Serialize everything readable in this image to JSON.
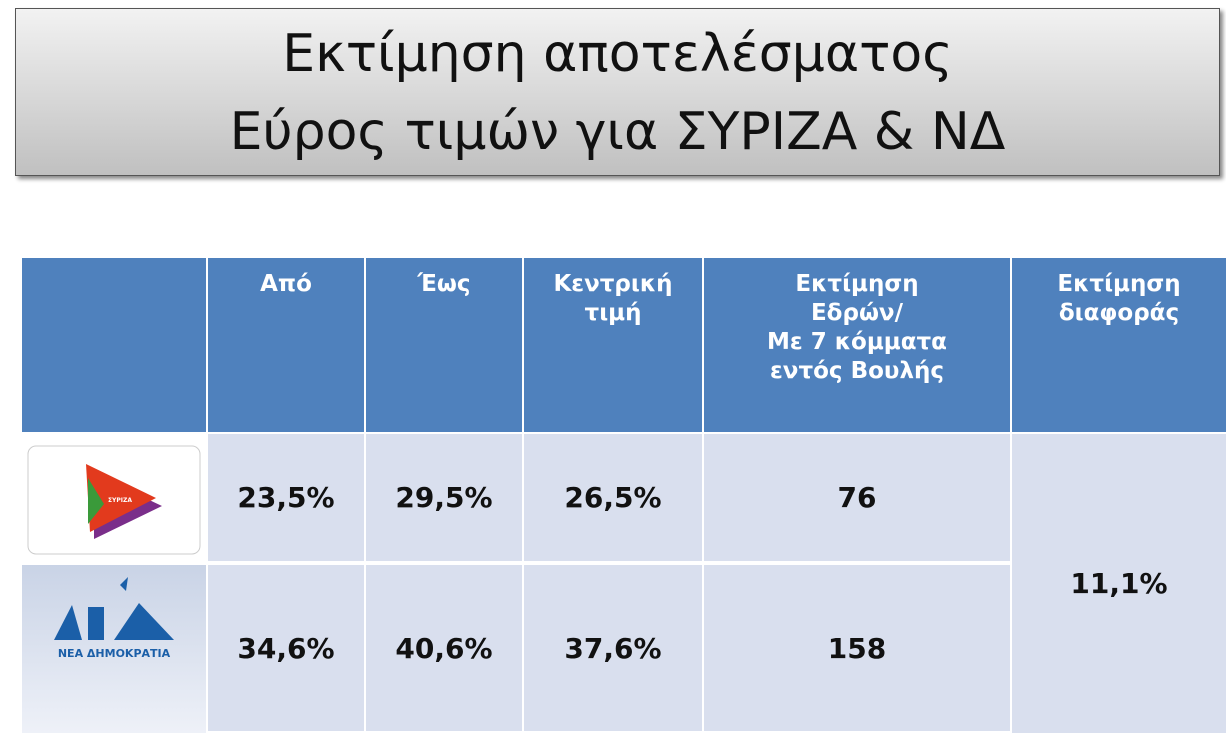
{
  "header": {
    "title": [
      "Εκτίμηση αποτελέσματος",
      "Εύρος τιμών για ΣΥΡΙΖΑ & ΝΔ"
    ]
  },
  "table": {
    "columns": [
      [
        "Από"
      ],
      [
        "Έως"
      ],
      [
        "Κεντρική",
        "τιμή"
      ],
      [
        "Εκτίμηση",
        "Εδρών/",
        "Με 7 κόμματα",
        "εντός Βουλής"
      ],
      [
        "Εκτίμηση",
        "διαφοράς"
      ]
    ],
    "rows": [
      {
        "logo": "ΣΥΡΙΖΑ",
        "cells": [
          "23,5%",
          "29,5%",
          "26,5%",
          "76"
        ]
      },
      {
        "logo": "ΝΕΑ ΔΗΜΟΚΡΑΤΙΑ",
        "cells": [
          "34,6%",
          "40,6%",
          "37,6%",
          "158"
        ]
      }
    ],
    "difference": "11,1%"
  }
}
